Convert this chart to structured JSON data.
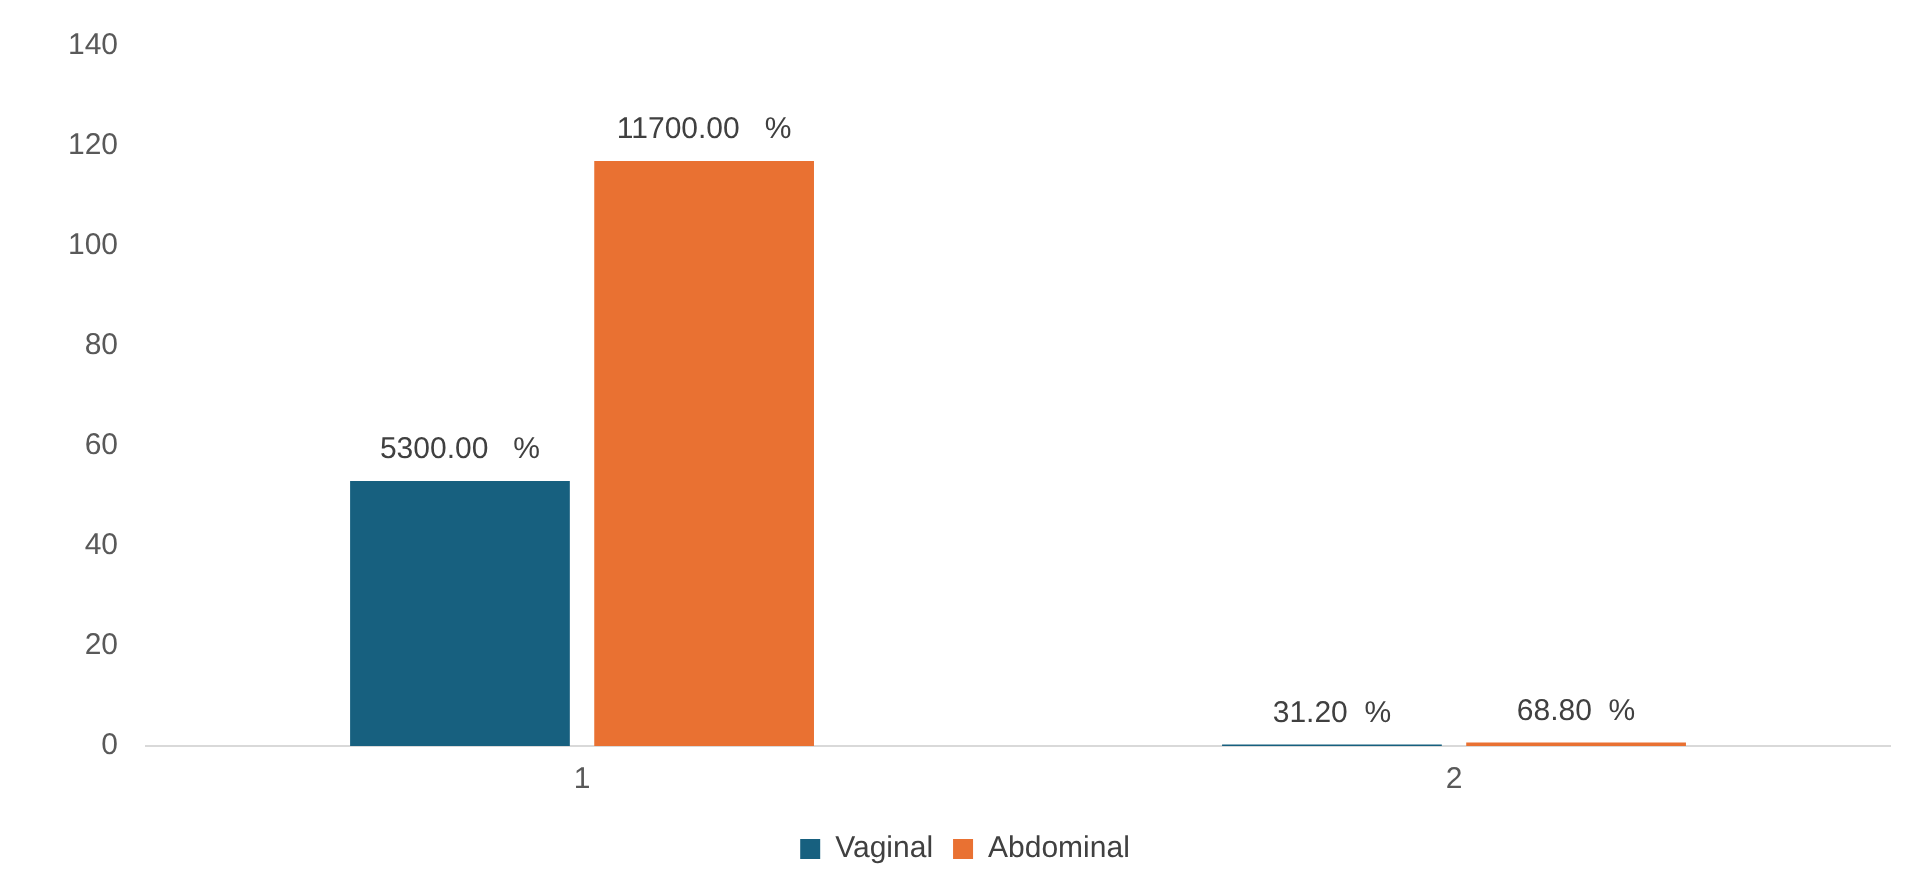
{
  "chart_data": {
    "type": "bar",
    "categories": [
      "1",
      "2"
    ],
    "series": [
      {
        "name": "Vaginal",
        "color": "#17607f",
        "values": [
          53,
          0.312
        ],
        "value_labels": [
          "5300.00   %",
          "31.20  %"
        ]
      },
      {
        "name": "Abdominal",
        "color": "#e97132",
        "values": [
          117,
          0.688
        ],
        "value_labels": [
          "11700.00   %",
          "68.80  %"
        ]
      }
    ],
    "ylim": [
      0,
      140
    ],
    "yticks": [
      0,
      20,
      40,
      60,
      80,
      100,
      120,
      140
    ],
    "grid": false,
    "legend": "bottom"
  }
}
